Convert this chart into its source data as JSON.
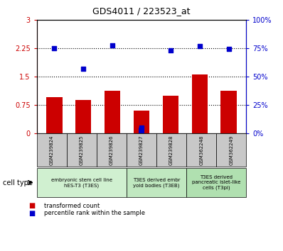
{
  "title": "GDS4011 / 223523_at",
  "samples": [
    "GSM239824",
    "GSM239825",
    "GSM239826",
    "GSM239827",
    "GSM239828",
    "GSM362248",
    "GSM362249"
  ],
  "red_values": [
    0.95,
    0.88,
    1.12,
    0.6,
    1.0,
    1.55,
    1.12
  ],
  "blue_values_left_scale": [
    2.25,
    1.7,
    2.32,
    0.14,
    2.19,
    2.3,
    2.24
  ],
  "blue_bar_index": 3,
  "blue_bar_height": 0.14,
  "ylim_left": [
    0,
    3
  ],
  "ylim_right": [
    0,
    100
  ],
  "yticks_left": [
    0,
    0.75,
    1.5,
    2.25,
    3
  ],
  "yticks_right": [
    0,
    25,
    50,
    75,
    100
  ],
  "ytick_labels_left": [
    "0",
    "0.75",
    "1.5",
    "2.25",
    "3"
  ],
  "ytick_labels_right": [
    "0%",
    "25%",
    "50%",
    "75%",
    "100%"
  ],
  "hlines": [
    0.75,
    1.5,
    2.25
  ],
  "cell_type_groups": [
    {
      "label": "embryonic stem cell line\nhES-T3 (T3ES)",
      "start": 0,
      "end": 3,
      "color": "#d0f0d0"
    },
    {
      "label": "T3ES derived embr\nyoid bodies (T3EB)",
      "start": 3,
      "end": 5,
      "color": "#c0e8c0"
    },
    {
      "label": "T3ES derived\npancreatic islet-like\ncells (T3pi)",
      "start": 5,
      "end": 7,
      "color": "#b0e0b0"
    }
  ],
  "red_color": "#cc0000",
  "blue_color": "#0000cc",
  "sample_box_color": "#c8c8c8",
  "legend_red": "transformed count",
  "legend_blue": "percentile rank within the sample",
  "cell_type_label": "cell type",
  "bar_width": 0.55
}
